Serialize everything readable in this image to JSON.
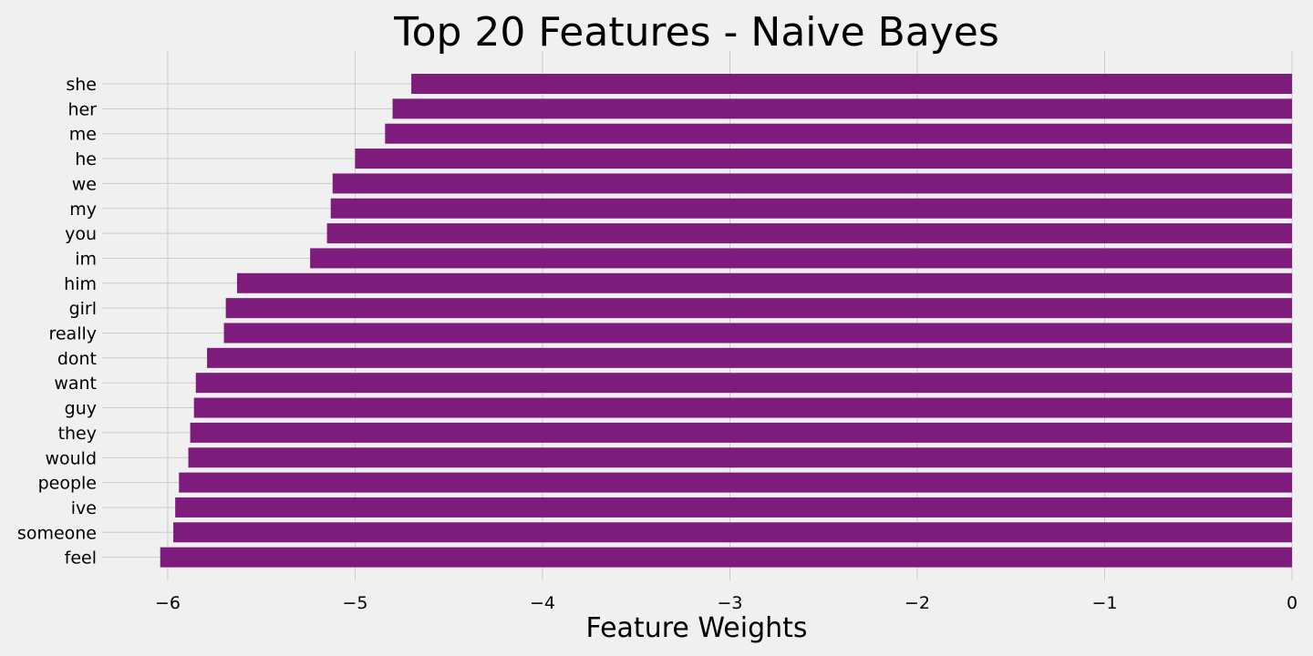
{
  "chart_data": {
    "type": "bar",
    "orientation": "horizontal",
    "title": "Top 20 Features - Naive Bayes",
    "xlabel": "Feature Weights",
    "ylabel": "",
    "xlim": [
      -6.35,
      0
    ],
    "xticks": [
      -6,
      -5,
      -4,
      -3,
      -2,
      -1,
      0
    ],
    "xtick_labels": [
      "−6",
      "−5",
      "−4",
      "−3",
      "−2",
      "−1",
      "0"
    ],
    "grid": true,
    "bar_color": "#7e1c7d",
    "background": "#f0f0f0",
    "categories": [
      "she",
      "her",
      "me",
      "he",
      "we",
      "my",
      "you",
      "im",
      "him",
      "girl",
      "really",
      "dont",
      "want",
      "guy",
      "they",
      "would",
      "people",
      "ive",
      "someone",
      "feel"
    ],
    "values": [
      -4.7,
      -4.8,
      -4.84,
      -5.0,
      -5.12,
      -5.13,
      -5.15,
      -5.24,
      -5.63,
      -5.69,
      -5.7,
      -5.79,
      -5.85,
      -5.86,
      -5.88,
      -5.89,
      -5.94,
      -5.96,
      -5.97,
      -6.04
    ]
  }
}
